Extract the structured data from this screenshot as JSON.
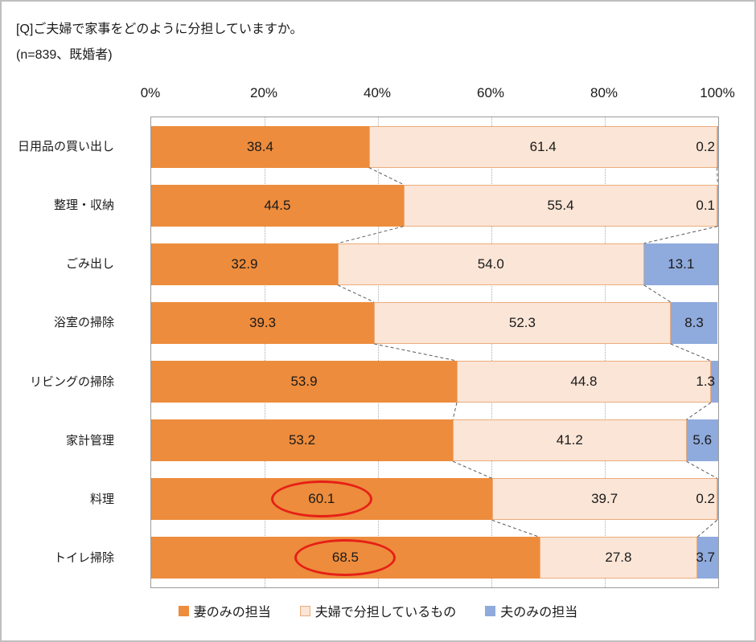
{
  "page": {
    "title": "[Q]ご夫婦で家事をどのように分担していますか。",
    "subtitle": "(n=839、既婚者)"
  },
  "chart_data": {
    "type": "bar",
    "orientation": "horizontal",
    "stacked": true,
    "title": "[Q]ご夫婦で家事をどのように分担していますか。",
    "subtitle": "(n=839、既婚者)",
    "categories": [
      "日用品の買い出し",
      "整理・収納",
      "ごみ出し",
      "浴室の掃除",
      "リビングの掃除",
      "家計管理",
      "料理",
      "トイレ掃除"
    ],
    "series": [
      {
        "name": "妻のみの担当",
        "color": "#ED8C3C",
        "values": [
          38.4,
          44.5,
          32.9,
          39.3,
          53.9,
          53.2,
          60.1,
          68.5
        ]
      },
      {
        "name": "夫婦で分担しているもの",
        "color": "#FBE5D6",
        "border": "#ECAC7C",
        "values": [
          61.4,
          55.4,
          54.0,
          52.3,
          44.8,
          41.2,
          39.7,
          27.8
        ]
      },
      {
        "name": "夫のみの担当",
        "color": "#8FAADC",
        "values": [
          0.2,
          0.1,
          13.1,
          8.3,
          1.3,
          5.6,
          0.2,
          3.7
        ]
      }
    ],
    "x_ticks": [
      "0%",
      "20%",
      "40%",
      "60%",
      "80%",
      "100%"
    ],
    "xlim": [
      0,
      100
    ],
    "grid": "dotted-vertical",
    "legend_position": "bottom",
    "value_format": "one-decimal",
    "annotations": {
      "circled_categories": [
        "料理",
        "トイレ掃除"
      ],
      "circle_color": "#E52017"
    }
  }
}
